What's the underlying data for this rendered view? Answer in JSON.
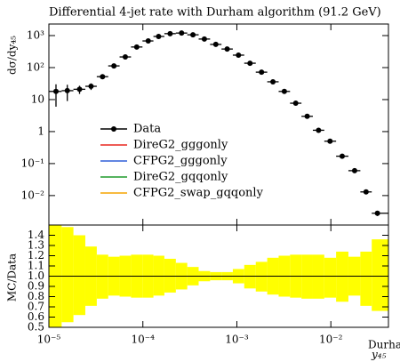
{
  "chart_data": [
    {
      "type": "scatter",
      "title": "Differential 4-jet rate with Durham algorithm (91.2 GeV)",
      "y_label": "dσ/dy₄₅",
      "log_x": true,
      "log_y": true,
      "x": [
        1.19e-05,
        1.57e-05,
        2.12e-05,
        2.81e-05,
        3.72e-05,
        4.92e-05,
        6.5e-05,
        8.6e-05,
        0.000114,
        0.000147,
        0.000195,
        0.000258,
        0.000341,
        0.000451,
        0.000597,
        0.000789,
        0.00104,
        0.00138,
        0.00183,
        0.00242,
        0.0032,
        0.00423,
        0.0056,
        0.0074,
        0.0098,
        0.0132,
        0.0179,
        0.0237,
        0.0313
      ],
      "xlim": [
        1e-05,
        0.041
      ],
      "xticks": [
        1e-05,
        0.0001,
        0.001,
        0.01
      ],
      "ylim": [
        0.0012,
        2300
      ],
      "yticks": [
        {
          "value": 0.01,
          "label": "10⁻²"
        },
        {
          "value": 0.1,
          "label": "10⁻¹"
        },
        1,
        10,
        {
          "value": 100,
          "label": "10²"
        },
        {
          "value": 1000,
          "label": "10³"
        }
      ],
      "series": [
        {
          "name": "Data",
          "color": "#000000",
          "values": [
            18,
            19,
            21,
            26,
            52,
            113,
            215,
            440,
            680,
            940,
            1150,
            1200,
            1060,
            780,
            530,
            380,
            245,
            137,
            72,
            36,
            18,
            7.7,
            3,
            1.1,
            0.5,
            0.17,
            0.06,
            0.013,
            0.0028
          ],
          "errors": [
            12,
            10,
            6,
            6,
            4,
            6,
            10,
            15,
            20,
            20,
            20,
            20,
            20,
            15,
            10,
            8,
            5,
            3,
            2,
            1,
            0.5,
            0.2,
            0.1,
            0.04,
            0.02,
            0.008,
            0.004,
            0.001,
            0.0005
          ]
        },
        {
          "name": "DireG2_gggonly",
          "color": "#e8261f"
        },
        {
          "name": "CFPG2_gggonly",
          "color": "#2f5fd9"
        },
        {
          "name": "DireG2_gqqonly",
          "color": "#1e9a2a"
        },
        {
          "name": "CFPG2_swap_gqqonly",
          "color": "#f5a400"
        }
      ]
    },
    {
      "type": "area",
      "y_label": "MC/Data",
      "x_label": "y₄₅",
      "x_label_sup": "Durham",
      "log_x": true,
      "x": [
        1.19e-05,
        1.57e-05,
        2.12e-05,
        2.81e-05,
        3.72e-05,
        4.92e-05,
        6.5e-05,
        8.6e-05,
        0.000114,
        0.000147,
        0.000195,
        0.000258,
        0.000341,
        0.000451,
        0.000597,
        0.000789,
        0.00104,
        0.00138,
        0.00183,
        0.00242,
        0.0032,
        0.00423,
        0.0056,
        0.0074,
        0.0098,
        0.0132,
        0.0179,
        0.0237,
        0.0313
      ],
      "band_color": "#ffff00",
      "band_low": [
        0.5,
        0.55,
        0.62,
        0.71,
        0.78,
        0.81,
        0.8,
        0.79,
        0.79,
        0.81,
        0.84,
        0.87,
        0.91,
        0.95,
        0.96,
        0.96,
        0.93,
        0.88,
        0.85,
        0.82,
        0.8,
        0.79,
        0.78,
        0.78,
        0.79,
        0.75,
        0.81,
        0.71,
        0.66
      ],
      "band_high": [
        1.5,
        1.48,
        1.4,
        1.29,
        1.21,
        1.19,
        1.2,
        1.21,
        1.21,
        1.2,
        1.17,
        1.13,
        1.09,
        1.05,
        1.04,
        1.04,
        1.07,
        1.11,
        1.14,
        1.18,
        1.2,
        1.21,
        1.21,
        1.21,
        1.18,
        1.24,
        1.19,
        1.24,
        1.36
      ],
      "reference": 1,
      "xlim": [
        1e-05,
        0.041
      ],
      "xticks": [
        {
          "value": 1e-05,
          "label": "10⁻⁵"
        },
        {
          "value": 0.0001,
          "label": "10⁻⁴"
        },
        {
          "value": 0.001,
          "label": "10⁻³"
        },
        {
          "value": 0.01,
          "label": "10⁻²"
        }
      ],
      "ylim": [
        0.5,
        1.5
      ],
      "yticks": [
        0.5,
        0.6,
        0.7,
        0.8,
        0.9,
        {
          "value": 1,
          "label": "1.0"
        },
        1.1,
        1.2,
        1.3,
        1.4
      ]
    }
  ]
}
